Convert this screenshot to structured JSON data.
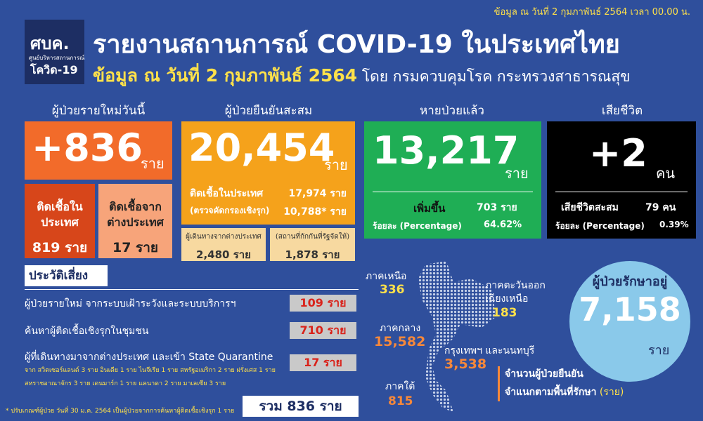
{
  "header": {
    "date_note": "ข้อมูล ณ วันที่ 2 กุมภาพันธ์ 2564 เวลา 00.00 น.",
    "logo_text": "ศบค.",
    "logo_sub": "ศูนย์บริหารสถานการณ์",
    "logo_sub2": "โควิด-19",
    "title": "รายงานสถานการณ์ COVID-19 ในประเทศไทย",
    "subtitle_bold": "ข้อมูล ณ วันที่ 2 กุมภาพันธ์ 2564",
    "subtitle_rest": "โดย กรมควบคุมโรค กระทรวงสาธารณสุข"
  },
  "new_cases": {
    "label": "ผู้ป่วยรายใหม่วันนี้",
    "value": "+836",
    "unit": "ราย",
    "local_label": "ติดเชื้อในประเทศ",
    "local_value": "819 ราย",
    "imported_label": "ติดเชื้อจากต่างประเทศ",
    "imported_value": "17 ราย"
  },
  "cumulative": {
    "label": "ผู้ป่วยยืนยันสะสม",
    "value": "20,454",
    "unit": "ราย",
    "local_label": "ติดเชื้อในประเทศ",
    "local_value": "17,974 ราย",
    "active_label": "(ตรวจคัดกรองเชิงรุก)",
    "active_value": "10,788* ราย",
    "traveler_label": "ผู้เดินทางจากต่างประเทศ",
    "traveler_value": "2,480 ราย",
    "quarantine_label": "(สถานที่กักกันที่รัฐจัดให้)",
    "quarantine_value": "1,878 ราย"
  },
  "recovered": {
    "label": "หายป่วยแล้ว",
    "value": "13,217",
    "unit": "ราย",
    "increase_label": "เพิ่มขึ้น",
    "increase_value": "703 ราย",
    "pct_label": "ร้อยละ (Percentage)",
    "pct_value": "64.62%"
  },
  "deaths": {
    "label": "เสียชีวิต",
    "value": "+2",
    "unit": "คน",
    "total_label": "เสียชีวิตสะสม",
    "total_value": "79 คน",
    "pct_label": "ร้อยละ (Percentage)",
    "pct_value": "0.39%"
  },
  "risk": {
    "title": "ประวัติเสี่ยง",
    "rows": [
      [
        "ผู้ป่วยรายใหม่ จากระบบเฝ้าระวังและระบบบริการฯ",
        "109 ราย"
      ],
      [
        "ค้นหาผู้ติดเชื้อเชิงรุกในชุมชน",
        "710 ราย"
      ],
      [
        "ผู้ที่เดินทางมาจากต่างประเทศ และเข้า State Quarantine",
        "17 ราย"
      ]
    ],
    "detail_1": "จาก สวิตเซอร์แลนด์ 3 ราย อินเดีย 1 ราย ไนจีเรีย 1 ราย สหรัฐอเมริกา 2 ราย ฝรั่งเศส 1 ราย",
    "detail_2": "สหราชอาณาจักร 3 ราย เดนมาร์ก 1 ราย แคนาดา 2 ราย มาเลเซีย 3 ราย",
    "total": "รวม 836 ราย"
  },
  "footnote": "* ปรับเกณฑ์ผู้ป่วย วันที่ 30 ม.ค. 2564 เป็นผู้ป่วยจากการค้นหาผู้ติดเชื้อเชิงรุก 1 ราย",
  "regions": [
    {
      "name": "ภาคเหนือ",
      "value": "336"
    },
    {
      "name": "ภาคตะวันออกเฉียงเหนือ",
      "value": "183"
    },
    {
      "name": "ภาคกลาง",
      "value": "15,582"
    },
    {
      "name": "กรุงเทพฯ และนนทบุรี",
      "value": "3,538"
    },
    {
      "name": "ภาคใต้",
      "value": "815"
    }
  ],
  "treatment": {
    "label": "ผู้ป่วยรักษาอยู่",
    "value": "7,158",
    "unit": "ราย"
  },
  "caption": {
    "bold": "จำนวนผู้ป่วยยืนยัน",
    "line2": "จำแนกตามพื้นที่รักษา",
    "unit": "(ราย)"
  }
}
